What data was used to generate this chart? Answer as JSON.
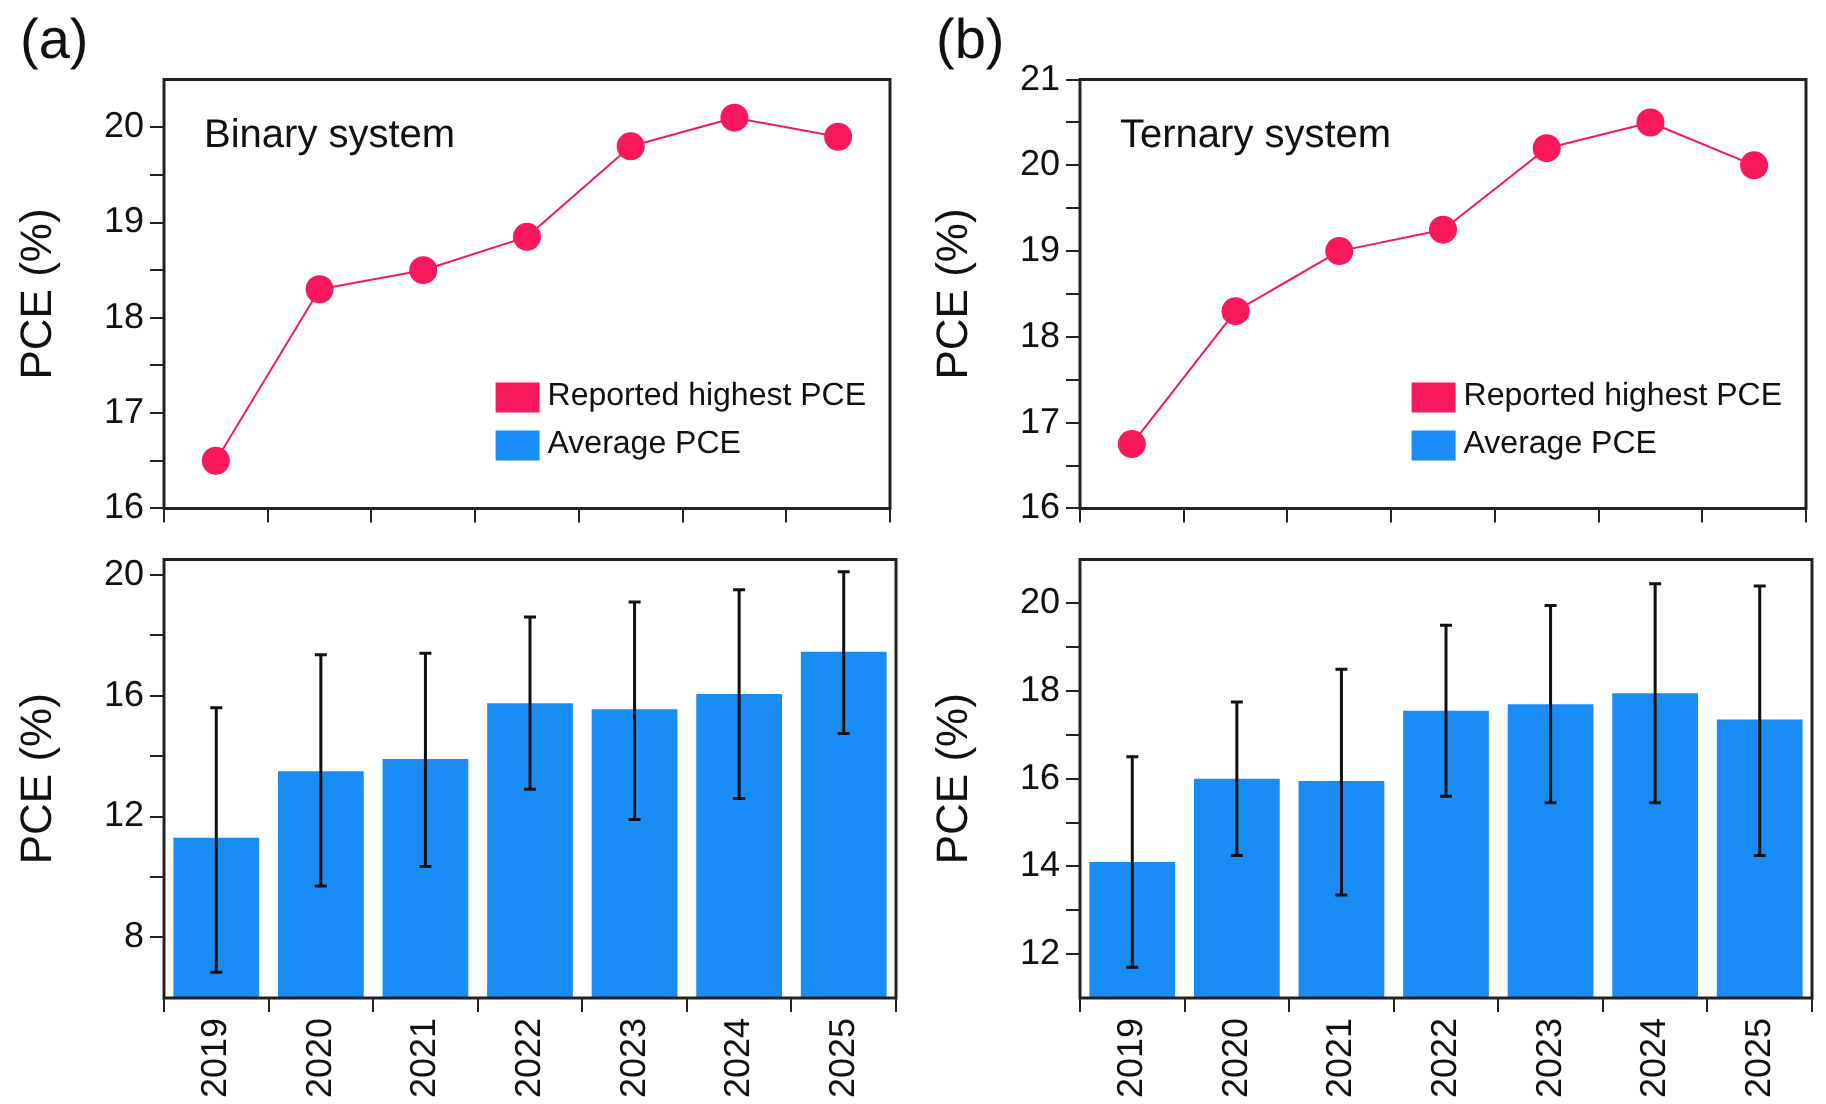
{
  "chart_data": [
    {
      "type": "line",
      "title": "(a)",
      "ylabel": "PCE (%)",
      "annotations": [
        "Binary system"
      ],
      "categories": [
        "2019",
        "2020",
        "2021",
        "2022",
        "2023",
        "2024",
        "2025"
      ],
      "series": [
        {
          "name": "Reported highest PCE",
          "color": "#f7195c",
          "values": [
            16.5,
            18.3,
            18.5,
            18.85,
            19.8,
            20.1,
            19.9
          ]
        },
        {
          "name": "Average PCE",
          "color": "#1a8cf5",
          "values": [
            null,
            null,
            null,
            null,
            null,
            null,
            null
          ]
        }
      ],
      "ylim": [
        16,
        20.5
      ],
      "yticks": [
        16,
        {
          "value": 16.5,
          "label": null
        },
        17,
        {
          "value": 17.5,
          "label": null
        },
        18,
        {
          "value": 18.5,
          "label": null
        },
        19,
        {
          "value": 19.5,
          "label": null
        },
        20
      ],
      "tick_labels": "y",
      "legend": "bottom right",
      "marker": "circle",
      "line_style": "solid"
    },
    {
      "type": "bar",
      "ylabel": "PCE (%)",
      "categories": [
        "2019",
        "2020",
        "2021",
        "2022",
        "2023",
        "2024",
        "2025"
      ],
      "series": [
        {
          "color": "#1a8cf5",
          "values": [
            11.3,
            13.5,
            13.9,
            15.75,
            15.55,
            16.05,
            17.45
          ],
          "errors": [
            [
              6.85,
              15.6
            ],
            [
              9.7,
              17.35
            ],
            [
              10.35,
              17.4
            ],
            [
              12.9,
              18.6
            ],
            [
              11.9,
              19.1
            ],
            [
              12.6,
              19.5
            ],
            [
              14.75,
              20.1
            ]
          ]
        }
      ],
      "ylim": [
        6,
        20.5
      ],
      "yticks": [
        8,
        {
          "value": 10,
          "label": null
        },
        12,
        {
          "value": 14,
          "label": null
        },
        16,
        {
          "value": 18,
          "label": null
        },
        20
      ]
    },
    {
      "type": "line",
      "title": "(b)",
      "ylabel": "PCE (%)",
      "annotations": [
        "Ternary system"
      ],
      "categories": [
        "2019",
        "2020",
        "2021",
        "2022",
        "2023",
        "2024",
        "2025"
      ],
      "series": [
        {
          "name": "Reported highest PCE",
          "color": "#f7195c",
          "values": [
            16.75,
            18.3,
            19.0,
            19.25,
            20.2,
            20.5,
            20.0
          ]
        },
        {
          "name": "Average PCE",
          "color": "#1a8cf5",
          "values": [
            null,
            null,
            null,
            null,
            null,
            null,
            null
          ]
        }
      ],
      "ylim": [
        16,
        21
      ],
      "yticks": [
        16,
        {
          "value": 16.5,
          "label": null
        },
        17,
        {
          "value": 17.5,
          "label": null
        },
        18,
        {
          "value": 18.5,
          "label": null
        },
        19,
        {
          "value": 19.5,
          "label": null
        },
        20,
        {
          "value": 20.5,
          "label": null
        },
        21
      ],
      "tick_labels": "y",
      "legend": "bottom right",
      "marker": "circle",
      "line_style": "solid"
    },
    {
      "type": "bar",
      "ylabel": "PCE (%)",
      "categories": [
        "2019",
        "2020",
        "2021",
        "2022",
        "2023",
        "2024",
        "2025"
      ],
      "series": [
        {
          "color": "#1a8cf5",
          "values": [
            14.1,
            16.0,
            15.95,
            17.55,
            17.7,
            17.95,
            17.35
          ],
          "errors": [
            [
              11.7,
              16.5
            ],
            [
              14.25,
              17.75
            ],
            [
              13.35,
              18.5
            ],
            [
              15.6,
              19.5
            ],
            [
              15.45,
              19.95
            ],
            [
              15.45,
              20.45
            ],
            [
              14.25,
              20.4
            ]
          ]
        }
      ],
      "ylim": [
        11,
        21
      ],
      "yticks": [
        12,
        {
          "value": 13,
          "label": null
        },
        14,
        {
          "value": 15,
          "label": null
        },
        16,
        {
          "value": 17,
          "label": null
        },
        18,
        {
          "value": 19,
          "label": null
        },
        20
      ]
    }
  ]
}
